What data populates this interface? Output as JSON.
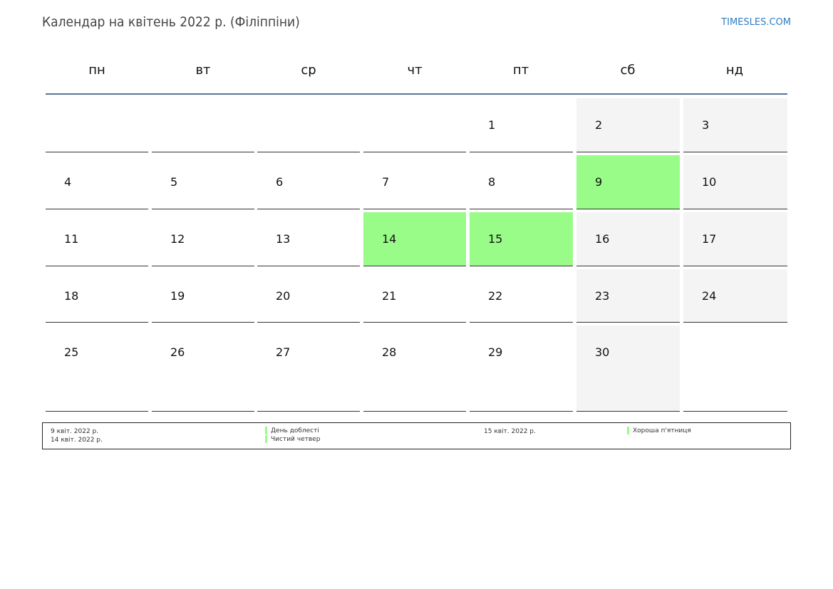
{
  "header": {
    "title": "Календар на квітень 2022 р. (Філіппіни)",
    "brand": "TIMESLES.COM"
  },
  "colors": {
    "weekend": "#f4f4f4",
    "holiday": "#99fb88",
    "header_line": "#5a7398"
  },
  "weekdays": [
    "пн",
    "вт",
    "ср",
    "чт",
    "пт",
    "сб",
    "нд"
  ],
  "weeks": [
    [
      null,
      null,
      null,
      null,
      1,
      2,
      3
    ],
    [
      4,
      5,
      6,
      7,
      8,
      9,
      10
    ],
    [
      11,
      12,
      13,
      14,
      15,
      16,
      17
    ],
    [
      18,
      19,
      20,
      21,
      22,
      23,
      24
    ],
    [
      25,
      26,
      27,
      28,
      29,
      30,
      null
    ]
  ],
  "holidays": [
    9,
    14,
    15
  ],
  "legend": {
    "dates_left": [
      "9 квіт. 2022 р.",
      "14 квіт. 2022 р."
    ],
    "names_left": [
      "День доблесті",
      "Чистий четвер"
    ],
    "dates_right": [
      "15 квіт. 2022 р."
    ],
    "names_right": [
      "Хороша п'ятниця"
    ]
  }
}
